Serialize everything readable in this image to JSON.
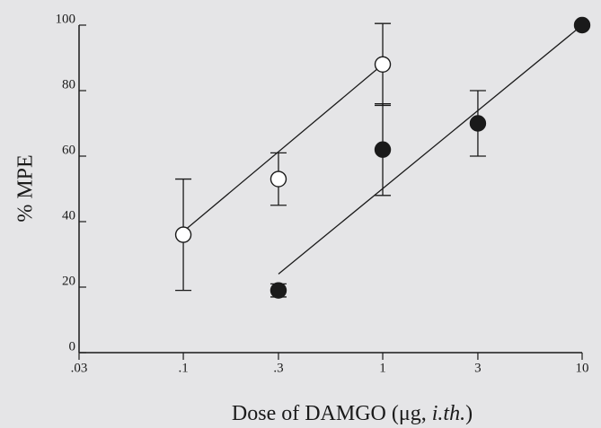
{
  "chart_data": {
    "type": "scatter",
    "x_label_parts": [
      "Dose of DAMGO (μg, ",
      "i.th.",
      ")"
    ],
    "y_label": "% MPE",
    "log_x": true,
    "xlim": [
      0.03,
      10
    ],
    "ylim": [
      0,
      100
    ],
    "xticks": [
      {
        "value": 0.03,
        "label": ".03"
      },
      {
        "value": 0.1,
        "label": ".1"
      },
      {
        "value": 0.3,
        "label": ".3"
      },
      1,
      3,
      10
    ],
    "yticks": [
      0,
      20,
      40,
      60,
      80,
      100
    ],
    "series": [
      {
        "marker": "open",
        "color": "#1a1a1a",
        "x": [
          0.1,
          0.3,
          1
        ],
        "values": [
          36,
          53,
          88
        ],
        "errors": [
          17,
          8,
          12.5
        ],
        "fit": {
          "x": [
            0.1,
            1
          ],
          "y": [
            37,
            88
          ]
        }
      },
      {
        "marker": "filled",
        "color": "#1a1a1a",
        "x": [
          0.3,
          1,
          3,
          10
        ],
        "values": [
          19,
          62,
          70,
          100
        ],
        "errors": [
          2,
          14,
          10,
          0
        ],
        "fit": {
          "x": [
            0.3,
            10
          ],
          "y": [
            24,
            100
          ]
        }
      }
    ]
  }
}
